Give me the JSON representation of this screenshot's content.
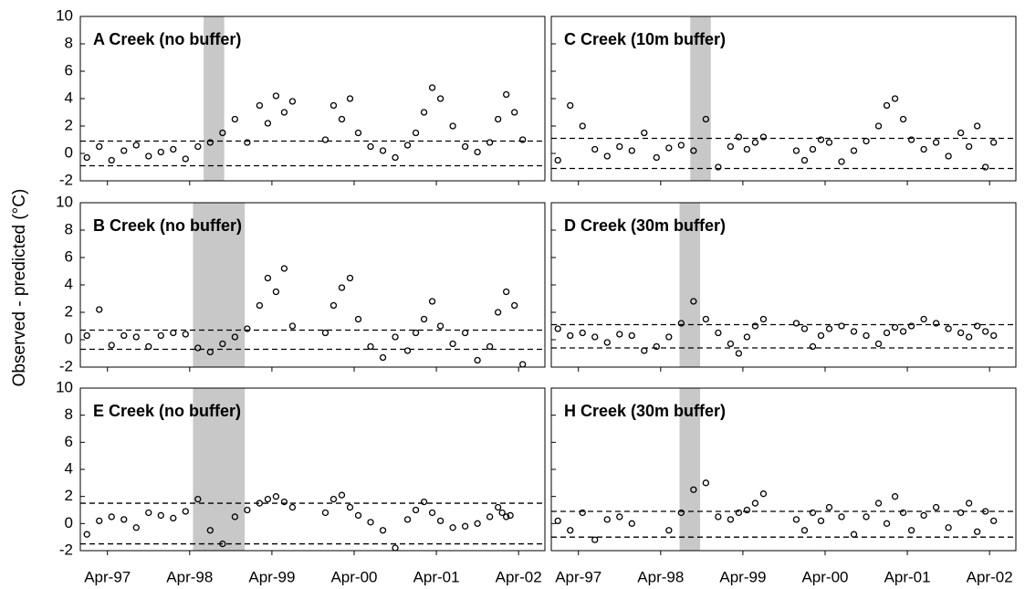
{
  "ylabel": "Observed - predicted  (°C)",
  "chart_data": [
    {
      "type": "scatter",
      "title": "A Creek (no buffer)",
      "color": "#000000",
      "x": [
        1997.0,
        1997.15,
        1997.3,
        1997.45,
        1997.6,
        1997.75,
        1997.9,
        1998.05,
        1998.2,
        1998.35,
        1998.5,
        1998.65,
        1998.8,
        1998.95,
        1999.1,
        1999.2,
        1999.3,
        1999.4,
        1999.5,
        1999.9,
        2000.0,
        2000.1,
        2000.2,
        2000.3,
        2000.45,
        2000.6,
        2000.75,
        2000.9,
        2001.0,
        2001.1,
        2001.2,
        2001.3,
        2001.45,
        2001.6,
        2001.75,
        2001.9,
        2002.0,
        2002.1,
        2002.2,
        2002.3
      ],
      "values": [
        -0.3,
        0.5,
        -0.5,
        0.2,
        0.6,
        -0.2,
        0.1,
        0.3,
        -0.4,
        0.5,
        0.8,
        1.5,
        2.5,
        0.8,
        3.5,
        2.2,
        4.2,
        3.0,
        3.8,
        1.0,
        3.5,
        2.5,
        4.0,
        1.5,
        0.5,
        0.2,
        -0.3,
        0.6,
        1.5,
        3.0,
        4.8,
        4.0,
        2.0,
        0.5,
        0.1,
        0.8,
        2.5,
        4.3,
        3.0,
        1.0
      ],
      "shade": [
        1998.42,
        1998.67
      ],
      "hlines": [
        0.9,
        -0.9
      ],
      "xlim": [
        1996.92,
        2002.57
      ],
      "ylim": [
        -2,
        10
      ],
      "yticks": [
        -2,
        0,
        2,
        4,
        6,
        8,
        10
      ],
      "xticks": [
        1997.25,
        1998.25,
        1999.25,
        2000.25,
        2001.25,
        2002.25
      ]
    },
    {
      "type": "scatter",
      "title": "C Creek (10m buffer)",
      "color": "#000000",
      "x": [
        1997.0,
        1997.15,
        1997.3,
        1997.45,
        1997.6,
        1997.75,
        1997.9,
        1998.05,
        1998.2,
        1998.35,
        1998.5,
        1998.65,
        1998.8,
        1998.95,
        1999.1,
        1999.2,
        1999.3,
        1999.4,
        1999.5,
        1999.9,
        2000.0,
        2000.1,
        2000.2,
        2000.3,
        2000.45,
        2000.6,
        2000.75,
        2000.9,
        2001.0,
        2001.1,
        2001.2,
        2001.3,
        2001.45,
        2001.6,
        2001.75,
        2001.9,
        2002.0,
        2002.1,
        2002.2,
        2002.3
      ],
      "values": [
        -0.5,
        3.5,
        2.0,
        0.3,
        -0.2,
        0.5,
        0.2,
        1.5,
        -0.3,
        0.4,
        0.6,
        0.2,
        2.5,
        -1.0,
        0.5,
        1.2,
        0.3,
        0.8,
        1.2,
        0.2,
        -0.5,
        0.3,
        1.0,
        0.8,
        -0.6,
        0.2,
        0.9,
        2.0,
        3.5,
        4.0,
        2.5,
        1.0,
        0.3,
        0.8,
        -0.2,
        1.5,
        0.5,
        2.0,
        -1.0,
        0.8
      ],
      "shade": [
        1998.61,
        1998.86
      ],
      "hlines": [
        1.1,
        -1.1
      ],
      "xlim": [
        1996.92,
        2002.57
      ],
      "ylim": [
        -2,
        10
      ],
      "yticks": [
        -2,
        0,
        2,
        4,
        6,
        8,
        10
      ],
      "xticks": [
        1997.25,
        1998.25,
        1999.25,
        2000.25,
        2001.25,
        2002.25
      ]
    },
    {
      "type": "scatter",
      "title": "B Creek (no buffer)",
      "color": "#000000",
      "x": [
        1997.0,
        1997.15,
        1997.3,
        1997.45,
        1997.6,
        1997.75,
        1997.9,
        1998.05,
        1998.2,
        1998.35,
        1998.5,
        1998.65,
        1998.8,
        1998.95,
        1999.1,
        1999.2,
        1999.3,
        1999.4,
        1999.5,
        1999.9,
        2000.0,
        2000.1,
        2000.2,
        2000.3,
        2000.45,
        2000.6,
        2000.75,
        2000.9,
        2001.0,
        2001.1,
        2001.2,
        2001.3,
        2001.45,
        2001.6,
        2001.75,
        2001.9,
        2002.0,
        2002.1,
        2002.2,
        2002.3
      ],
      "values": [
        0.3,
        2.2,
        -0.4,
        0.3,
        0.2,
        -0.5,
        0.3,
        0.5,
        0.4,
        -0.6,
        -0.9,
        -0.3,
        0.2,
        0.8,
        2.5,
        4.5,
        3.5,
        5.2,
        1.0,
        0.5,
        2.5,
        3.8,
        4.5,
        1.5,
        -0.5,
        -1.3,
        0.2,
        -0.8,
        0.5,
        1.5,
        2.8,
        1.0,
        -0.3,
        0.5,
        -1.5,
        -0.5,
        2.0,
        3.5,
        2.5,
        -1.8
      ],
      "shade": [
        1998.29,
        1998.92
      ],
      "hlines": [
        0.7,
        -0.7
      ],
      "xlim": [
        1996.92,
        2002.57
      ],
      "ylim": [
        -2,
        10
      ],
      "yticks": [
        -2,
        0,
        2,
        4,
        6,
        8,
        10
      ],
      "xticks": [
        1997.25,
        1998.25,
        1999.25,
        2000.25,
        2001.25,
        2002.25
      ]
    },
    {
      "type": "scatter",
      "title": "D Creek (30m buffer)",
      "color": "#000000",
      "x": [
        1997.0,
        1997.15,
        1997.3,
        1997.45,
        1997.6,
        1997.75,
        1997.9,
        1998.05,
        1998.2,
        1998.35,
        1998.5,
        1998.65,
        1998.8,
        1998.95,
        1999.1,
        1999.2,
        1999.3,
        1999.4,
        1999.5,
        1999.9,
        2000.0,
        2000.1,
        2000.2,
        2000.3,
        2000.45,
        2000.6,
        2000.75,
        2000.9,
        2001.0,
        2001.1,
        2001.2,
        2001.3,
        2001.45,
        2001.6,
        2001.75,
        2001.9,
        2002.0,
        2002.1,
        2002.2,
        2002.3
      ],
      "values": [
        0.8,
        0.3,
        0.5,
        0.2,
        -0.2,
        0.4,
        0.3,
        -0.8,
        -0.5,
        0.2,
        1.2,
        2.8,
        1.5,
        0.5,
        -0.3,
        -1.0,
        0.2,
        1.0,
        1.5,
        1.2,
        0.8,
        -0.5,
        0.3,
        0.8,
        1.0,
        0.6,
        0.3,
        -0.3,
        0.5,
        0.9,
        0.6,
        1.0,
        1.5,
        1.2,
        0.8,
        0.5,
        0.2,
        1.0,
        0.6,
        0.3
      ],
      "shade": [
        1998.48,
        1998.73
      ],
      "hlines": [
        1.1,
        -0.6
      ],
      "xlim": [
        1996.92,
        2002.57
      ],
      "ylim": [
        -2,
        10
      ],
      "yticks": [
        -2,
        0,
        2,
        4,
        6,
        8,
        10
      ],
      "xticks": [
        1997.25,
        1998.25,
        1999.25,
        2000.25,
        2001.25,
        2002.25
      ]
    },
    {
      "type": "scatter",
      "title": "E Creek (no buffer)",
      "color": "#000000",
      "x": [
        1997.0,
        1997.15,
        1997.3,
        1997.45,
        1997.6,
        1997.75,
        1997.9,
        1998.05,
        1998.2,
        1998.35,
        1998.5,
        1998.65,
        1998.8,
        1998.95,
        1999.1,
        1999.2,
        1999.3,
        1999.4,
        1999.5,
        1999.9,
        2000.0,
        2000.1,
        2000.2,
        2000.3,
        2000.45,
        2000.6,
        2000.75,
        2000.9,
        2001.0,
        2001.1,
        2001.2,
        2001.3,
        2001.45,
        2001.6,
        2001.75,
        2001.9,
        2002.0,
        2002.05,
        2002.1,
        2002.15
      ],
      "values": [
        -0.8,
        0.2,
        0.5,
        0.3,
        -0.3,
        0.8,
        0.6,
        0.4,
        0.9,
        1.8,
        -0.5,
        -1.5,
        0.5,
        1.0,
        1.5,
        1.8,
        2.0,
        1.6,
        1.2,
        0.8,
        1.8,
        2.1,
        1.2,
        0.6,
        0.1,
        -0.5,
        -1.8,
        0.3,
        1.0,
        1.6,
        0.8,
        0.2,
        -0.3,
        -0.2,
        0.0,
        0.5,
        1.2,
        0.8,
        0.5,
        0.6
      ],
      "shade": [
        1998.29,
        1998.92
      ],
      "hlines": [
        1.5,
        -1.5
      ],
      "xlim": [
        1996.92,
        2002.57
      ],
      "ylim": [
        -2,
        10
      ],
      "yticks": [
        -2,
        0,
        2,
        4,
        6,
        8,
        10
      ],
      "xticks": [
        {
          "value": 1997.25,
          "label": "Apr-97"
        },
        {
          "value": 1998.25,
          "label": "Apr-98"
        },
        {
          "value": 1999.25,
          "label": "Apr-99"
        },
        {
          "value": 2000.25,
          "label": "Apr-00"
        },
        {
          "value": 2001.25,
          "label": "Apr-01"
        },
        {
          "value": 2002.25,
          "label": "Apr-02"
        }
      ]
    },
    {
      "type": "scatter",
      "title": "H Creek (30m buffer)",
      "color": "#000000",
      "x": [
        1997.0,
        1997.15,
        1997.3,
        1997.45,
        1997.6,
        1997.75,
        1997.9,
        1998.05,
        1998.2,
        1998.35,
        1998.5,
        1998.65,
        1998.8,
        1998.95,
        1999.1,
        1999.2,
        1999.3,
        1999.4,
        1999.5,
        1999.9,
        2000.0,
        2000.1,
        2000.2,
        2000.3,
        2000.45,
        2000.6,
        2000.75,
        2000.9,
        2001.0,
        2001.1,
        2001.2,
        2001.3,
        2001.45,
        2001.6,
        2001.75,
        2001.9,
        2002.0,
        2002.1,
        2002.2,
        2002.3
      ],
      "values": [
        0.2,
        -0.5,
        0.8,
        -1.2,
        0.3,
        0.5,
        0.0,
        null,
        null,
        -0.5,
        0.8,
        2.5,
        3.0,
        0.5,
        0.3,
        0.8,
        1.0,
        1.5,
        2.2,
        0.3,
        -0.5,
        0.8,
        0.2,
        1.2,
        0.5,
        -0.8,
        0.5,
        1.5,
        0.0,
        2.0,
        0.8,
        -0.5,
        0.6,
        1.2,
        -0.3,
        0.8,
        1.5,
        -0.6,
        0.9,
        0.2
      ],
      "shade": [
        1998.48,
        1998.73
      ],
      "hlines": [
        0.9,
        -1.0
      ],
      "xlim": [
        1996.92,
        2002.57
      ],
      "ylim": [
        -2,
        10
      ],
      "yticks": [
        -2,
        0,
        2,
        4,
        6,
        8,
        10
      ],
      "xticks": [
        {
          "value": 1997.25,
          "label": "Apr-97"
        },
        {
          "value": 1998.25,
          "label": "Apr-98"
        },
        {
          "value": 1999.25,
          "label": "Apr-99"
        },
        {
          "value": 2000.25,
          "label": "Apr-00"
        },
        {
          "value": 2001.25,
          "label": "Apr-01"
        },
        {
          "value": 2002.25,
          "label": "Apr-02"
        }
      ]
    }
  ]
}
